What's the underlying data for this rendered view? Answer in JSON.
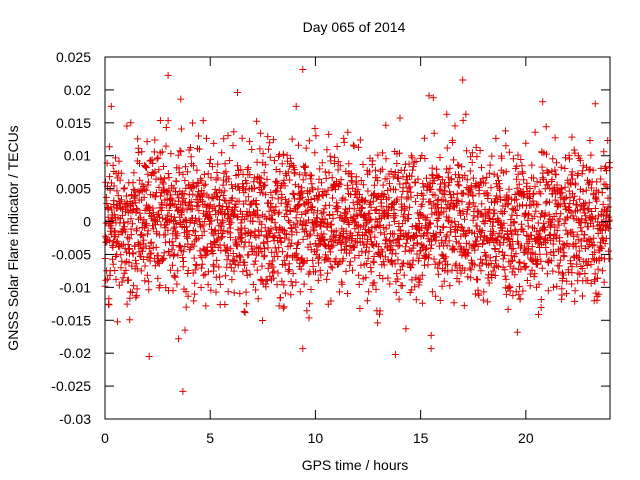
{
  "chart_data": {
    "type": "scatter",
    "title": "Day 065 of 2014",
    "xlabel": "GPS time / hours",
    "ylabel": "GNSS Solar Flare indicator / TECUs",
    "xlim": [
      0,
      24
    ],
    "ylim": [
      -0.03,
      0.025
    ],
    "xticks": [
      0,
      5,
      10,
      15,
      20
    ],
    "xtick_labels": [
      "0",
      "5",
      "10",
      "15",
      "20"
    ],
    "yticks": [
      -0.03,
      -0.025,
      -0.02,
      -0.015,
      -0.01,
      -0.005,
      0,
      0.005,
      0.01,
      0.015,
      0.02,
      0.025
    ],
    "ytick_labels": [
      "-0.03",
      "-0.025",
      "-0.02",
      "-0.015",
      "-0.01",
      "-0.005",
      "0",
      "0.005",
      "0.01",
      "0.015",
      "0.02",
      "0.025"
    ],
    "grid": false,
    "marker": "+",
    "marker_color": "#e00000",
    "series": [
      {
        "name": "solar flare indicator",
        "generated": {
          "seed": 65014,
          "count": 2880,
          "x_start": 0.0,
          "x_step": 0.00833,
          "std": 0.0055,
          "clip": [
            -0.0195,
            0.0185
          ]
        },
        "outliers": [
          {
            "x": 3.0,
            "y": 0.0222
          },
          {
            "x": 9.4,
            "y": 0.0231
          },
          {
            "x": 6.3,
            "y": 0.0196
          },
          {
            "x": 17.0,
            "y": 0.0215
          },
          {
            "x": 3.6,
            "y": 0.0186
          },
          {
            "x": 15.4,
            "y": 0.0191
          },
          {
            "x": 15.6,
            "y": 0.0188
          },
          {
            "x": 20.8,
            "y": 0.0182
          },
          {
            "x": 23.3,
            "y": 0.0179
          },
          {
            "x": 0.3,
            "y": 0.0175
          },
          {
            "x": 3.7,
            "y": -0.0258
          },
          {
            "x": 2.1,
            "y": -0.0205
          },
          {
            "x": 13.8,
            "y": -0.0202
          },
          {
            "x": 15.5,
            "y": -0.0193
          },
          {
            "x": 9.4,
            "y": -0.0193
          },
          {
            "x": 3.5,
            "y": -0.0178
          },
          {
            "x": 3.8,
            "y": -0.0165
          },
          {
            "x": 14.3,
            "y": -0.0163
          }
        ]
      }
    ]
  }
}
